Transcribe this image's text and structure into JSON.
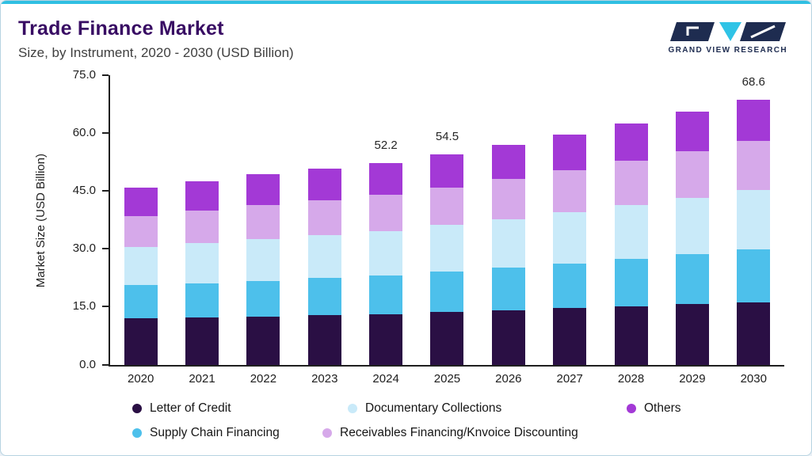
{
  "header": {
    "title": "Trade Finance Market",
    "subtitle": "Size, by Instrument, 2020 - 2030 (USD Billion)",
    "logo_text": "GRAND VIEW RESEARCH"
  },
  "colors": {
    "accent_top": "#2fbfe2",
    "card_border": "#b7d3e1",
    "title_purple": "#380c63",
    "logo_navy": "#1e2c50",
    "logo_teal": "#2fc3e6",
    "axis": "#1f1f1f"
  },
  "chart_data": {
    "type": "bar",
    "stacked": true,
    "title": "Trade Finance Market Size, by Instrument, 2020 - 2030 (USD Billion)",
    "xlabel": "",
    "ylabel": "Market Size (USD Billion)",
    "ylim": [
      0,
      75
    ],
    "yticks": [
      0,
      15,
      30,
      45,
      60,
      75
    ],
    "ytick_labels": [
      "0.0",
      "15.0",
      "30.0",
      "45.0",
      "60.0",
      "75.0"
    ],
    "grid": false,
    "legend_position": "bottom",
    "categories": [
      "2020",
      "2021",
      "2022",
      "2023",
      "2024",
      "2025",
      "2026",
      "2027",
      "2028",
      "2029",
      "2030"
    ],
    "series": [
      {
        "name": "Letter of Credit",
        "color": "#2a0f44",
        "values": [
          11.9,
          12.2,
          12.5,
          12.8,
          13.1,
          13.6,
          14.1,
          14.6,
          15.1,
          15.6,
          16.1
        ]
      },
      {
        "name": "Supply Chain Financing",
        "color": "#4dc0eb",
        "values": [
          8.6,
          8.9,
          9.2,
          9.6,
          10.0,
          10.5,
          11.0,
          11.6,
          12.3,
          13.0,
          13.8
        ]
      },
      {
        "name": "Documentary Collections",
        "color": "#c9eaf9",
        "values": [
          10.0,
          10.4,
          10.8,
          11.1,
          11.5,
          12.0,
          12.6,
          13.2,
          13.8,
          14.5,
          15.2
        ]
      },
      {
        "name": "Receivables Financing/Knvoice Discounting",
        "color": "#d6a9ea",
        "values": [
          8.0,
          8.3,
          8.7,
          9.0,
          9.3,
          9.8,
          10.3,
          10.9,
          11.5,
          12.1,
          12.8
        ]
      },
      {
        "name": "Others",
        "color": "#a339d6",
        "values": [
          7.4,
          7.7,
          8.0,
          8.2,
          8.3,
          8.6,
          8.9,
          9.3,
          9.7,
          10.2,
          10.7
        ]
      }
    ],
    "totals_labels": {
      "2024": "52.2",
      "2025": "54.5",
      "2030": "68.6"
    },
    "legend_rows": [
      [
        "Letter of Credit",
        "Documentary Collections",
        "Others"
      ],
      [
        "Supply Chain Financing",
        "Receivables Financing/Knvoice Discounting"
      ]
    ]
  }
}
